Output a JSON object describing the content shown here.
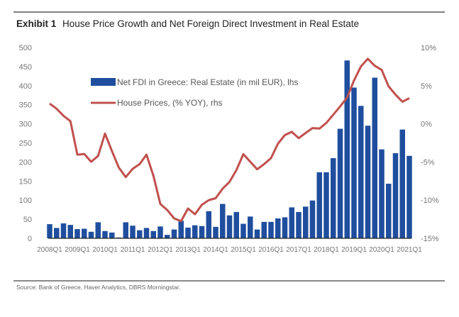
{
  "exhibit_label": "Exhibit 1",
  "title": "House Price Growth and Net Foreign Direct Investment in Real Estate",
  "source": "Source: Bank of Greece, Haver Analytics, DBRS Morningstar.",
  "chart_data": {
    "type": "bar+line",
    "categories": [
      "2008Q1",
      "2008Q2",
      "2008Q3",
      "2008Q4",
      "2009Q1",
      "2009Q2",
      "2009Q3",
      "2009Q4",
      "2010Q1",
      "2010Q2",
      "2010Q3",
      "2010Q4",
      "2011Q1",
      "2011Q2",
      "2011Q3",
      "2011Q4",
      "2012Q1",
      "2012Q2",
      "2012Q3",
      "2012Q4",
      "2013Q1",
      "2013Q2",
      "2013Q3",
      "2013Q4",
      "2014Q1",
      "2014Q2",
      "2014Q3",
      "2014Q4",
      "2015Q1",
      "2015Q2",
      "2015Q3",
      "2015Q4",
      "2016Q1",
      "2016Q2",
      "2016Q3",
      "2016Q4",
      "2017Q1",
      "2017Q2",
      "2017Q3",
      "2017Q4",
      "2018Q1",
      "2018Q2",
      "2018Q3",
      "2018Q4",
      "2019Q1",
      "2019Q2",
      "2019Q3",
      "2019Q4",
      "2020Q1",
      "2020Q2",
      "2020Q3",
      "2020Q4",
      "2021Q1"
    ],
    "x_tick_labels": [
      "2008Q1",
      "2009Q1",
      "2010Q1",
      "2011Q1",
      "2012Q1",
      "2013Q1",
      "2014Q1",
      "2015Q1",
      "2016Q1",
      "2017Q1",
      "2018Q1",
      "2019Q1",
      "2020Q1",
      "2021Q1"
    ],
    "series": [
      {
        "name": "Net FDI in Greece: Real Estate (in mil EUR), lhs",
        "type": "bar",
        "axis": "left",
        "color": "#1f4e9e",
        "values": [
          37,
          27,
          39,
          35,
          24,
          25,
          17,
          42,
          19,
          15,
          2,
          42,
          33,
          21,
          27,
          19,
          31,
          9,
          23,
          46,
          28,
          34,
          32,
          71,
          30,
          90,
          60,
          69,
          38,
          57,
          23,
          43,
          43,
          52,
          55,
          81,
          69,
          83,
          99,
          173,
          173,
          210,
          287,
          466,
          395,
          347,
          295,
          421,
          233,
          143,
          223,
          285,
          216
        ]
      },
      {
        "name": "House Prices, (% YOY), rhs",
        "type": "line",
        "axis": "right",
        "color": "#c0504d",
        "values": [
          2.65,
          1.98,
          1.05,
          0.34,
          -4.04,
          -3.95,
          -4.97,
          -4.2,
          -1.27,
          -3.58,
          -5.74,
          -6.98,
          -5.9,
          -5.28,
          -4.04,
          -6.82,
          -10.5,
          -11.3,
          -12.4,
          -12.75,
          -11.1,
          -11.85,
          -10.6,
          -10.0,
          -9.75,
          -8.5,
          -7.6,
          -6.05,
          -3.98,
          -4.97,
          -5.96,
          -5.28,
          -4.5,
          -2.6,
          -1.48,
          -1.05,
          -1.88,
          -1.2,
          -0.56,
          -0.62,
          0.12,
          1.2,
          2.28,
          3.46,
          5.68,
          7.53,
          8.52,
          7.6,
          7.07,
          4.9,
          3.83,
          2.9,
          3.36
        ]
      }
    ],
    "left_axis": {
      "range": [
        0,
        500
      ],
      "ticks": [
        "0",
        "50",
        "100",
        "150",
        "200",
        "250",
        "300",
        "350",
        "400",
        "450",
        "500"
      ]
    },
    "right_axis": {
      "range": [
        -15,
        10
      ],
      "ticks": [
        "-15%",
        "-10%",
        "-5%",
        "0%",
        "5%",
        "10%"
      ]
    },
    "grid": false,
    "legend_position": "top-left"
  }
}
